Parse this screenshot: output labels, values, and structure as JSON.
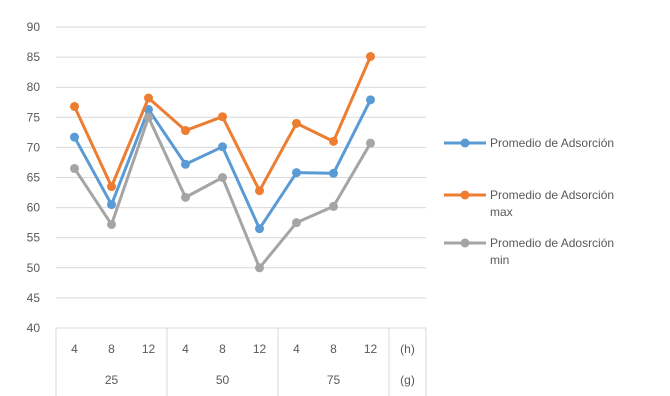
{
  "chart_data": {
    "type": "line",
    "title": "",
    "xlabel": "",
    "ylabel": "",
    "ylim": [
      40,
      90
    ],
    "yticks": [
      40,
      45,
      50,
      55,
      60,
      65,
      70,
      75,
      80,
      85,
      90
    ],
    "grid": true,
    "legend_position": "right",
    "categories": [
      "4",
      "8",
      "12",
      "4",
      "8",
      "12",
      "4",
      "8",
      "12"
    ],
    "groups": [
      {
        "label": "25",
        "count": 3
      },
      {
        "label": "50",
        "count": 3
      },
      {
        "label": "75",
        "count": 3
      }
    ],
    "axis_unit_row1": "(h)",
    "axis_unit_row2": "(g)",
    "series": [
      {
        "name": "Promedio de Adsorción",
        "color": "#5B9BD5",
        "values": [
          71.7,
          60.5,
          76.3,
          67.2,
          70.1,
          56.5,
          65.8,
          65.7,
          77.9
        ]
      },
      {
        "name": "Promedio de Adsorción max",
        "color": "#ED7D31",
        "values": [
          76.8,
          63.5,
          78.2,
          72.8,
          75.1,
          62.8,
          74.0,
          71.0,
          85.1
        ]
      },
      {
        "name": "Promedio de Adosrción min",
        "color": "#A5A5A5",
        "values": [
          66.5,
          57.2,
          75.0,
          61.7,
          65.0,
          50.0,
          57.5,
          60.2,
          70.7
        ]
      }
    ]
  }
}
